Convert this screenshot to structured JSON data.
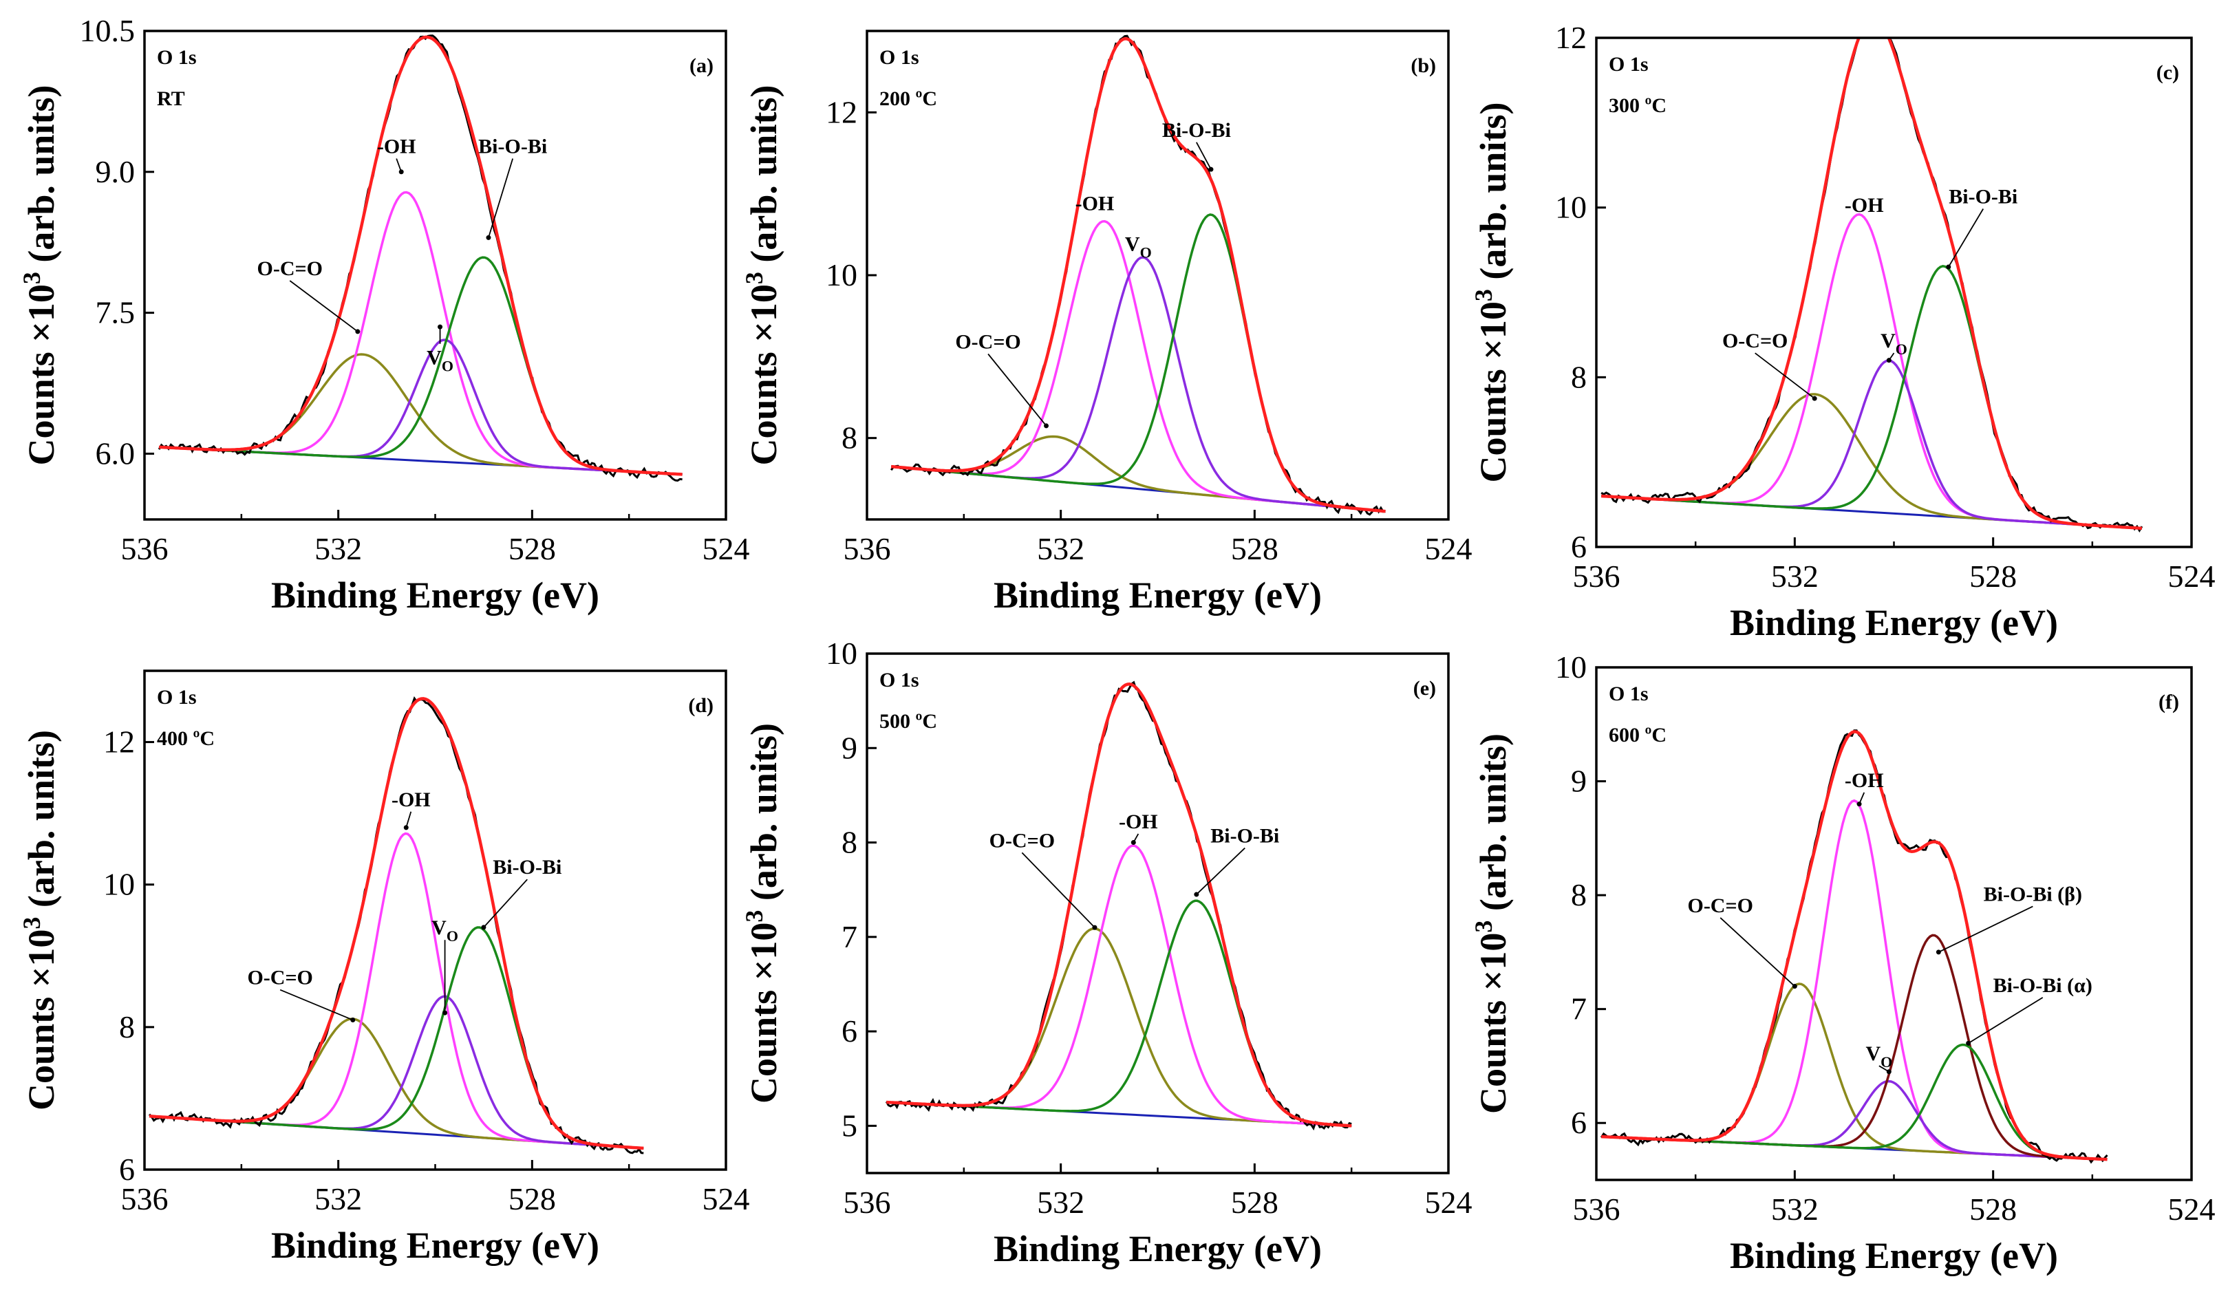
{
  "figure": {
    "xlabel": "Binding Energy (eV)",
    "ylabel_main": "Counts ×10",
    "ylabel_exp": "3",
    "ylabel_unit": " (arb. units)",
    "region_label": "O 1s"
  },
  "colors": {
    "raw": "#000000",
    "envelope": "#ff2020",
    "background": "#1a22b4",
    "oh": "#ff40ff",
    "oco": "#8b8a1c",
    "vo": "#8a2be2",
    "bioibi": "#1a8a1a",
    "bioibi_beta": "#7a1010"
  },
  "chart_data": [
    {
      "type": "line",
      "panel": "(a)",
      "condition": "RT",
      "xlim": [
        536,
        524
      ],
      "ylim": [
        5.3,
        10.5
      ],
      "xticks": [
        536,
        532,
        528,
        524
      ],
      "yticks": [
        "6.0",
        "7.5",
        "9.0",
        "10.5"
      ],
      "x_range": [
        535.7,
        524.9
      ],
      "baseline": [
        6.07,
        5.78
      ],
      "series": [
        {
          "name": "O-C=O",
          "label": "O-C=O",
          "center": 531.5,
          "height": 1.1,
          "width": 0.9
        },
        {
          "name": "-OH",
          "label": "-OH",
          "center": 530.6,
          "height": 2.85,
          "width": 0.75
        },
        {
          "name": "VO",
          "label": "V",
          "label_sub": "O",
          "center": 529.8,
          "height": 1.3,
          "width": 0.6
        },
        {
          "name": "Bi-O-Bi",
          "label": "Bi-O-Bi",
          "center": 529.0,
          "height": 2.2,
          "width": 0.75
        }
      ],
      "annotations": [
        {
          "key": "O-C=O",
          "text": "O-C=O",
          "sub": "",
          "text_at": [
            533.0,
            7.9
          ],
          "arrow_to": [
            531.6,
            7.3
          ]
        },
        {
          "key": "-OH",
          "text": "-OH",
          "sub": "",
          "text_at": [
            530.8,
            9.2
          ],
          "arrow_to": [
            530.7,
            9.0
          ]
        },
        {
          "key": "VO",
          "text": "V",
          "sub": "O",
          "text_at": [
            529.9,
            6.95
          ],
          "arrow_to": [
            529.9,
            7.35
          ]
        },
        {
          "key": "Bi-O-Bi",
          "text": "Bi-O-Bi",
          "sub": "",
          "text_at": [
            528.4,
            9.2
          ],
          "arrow_to": [
            528.9,
            8.3
          ]
        }
      ]
    },
    {
      "type": "line",
      "panel": "(b)",
      "condition": "200 ºC",
      "xlim": [
        536,
        524
      ],
      "ylim": [
        7.0,
        13.0
      ],
      "xticks": [
        536,
        532,
        528,
        524
      ],
      "yticks": [
        "8",
        "10",
        "12"
      ],
      "x_range": [
        535.5,
        525.3
      ],
      "baseline": [
        7.65,
        7.1
      ],
      "series": [
        {
          "name": "O-C=O",
          "label": "O-C=O",
          "center": 532.1,
          "height": 0.55,
          "width": 0.8
        },
        {
          "name": "-OH",
          "label": "-OH",
          "center": 531.1,
          "height": 3.25,
          "width": 0.75
        },
        {
          "name": "VO",
          "label": "V",
          "label_sub": "O",
          "center": 530.3,
          "height": 2.85,
          "width": 0.7
        },
        {
          "name": "Bi-O-Bi",
          "label": "Bi-O-Bi",
          "center": 528.9,
          "height": 3.45,
          "width": 0.72
        }
      ],
      "annotations": [
        {
          "key": "O-C=O",
          "text": "O-C=O",
          "sub": "",
          "text_at": [
            533.5,
            9.1
          ],
          "arrow_to": [
            532.3,
            8.15
          ]
        },
        {
          "key": "-OH",
          "text": "-OH",
          "sub": "",
          "text_at": [
            531.3,
            10.8
          ],
          "arrow_to": [
            531.2,
            10.7
          ]
        },
        {
          "key": "VO",
          "text": "V",
          "sub": "O",
          "text_at": [
            530.4,
            10.3
          ],
          "arrow_to": [
            530.3,
            10.2
          ]
        },
        {
          "key": "Bi-O-Bi",
          "text": "Bi-O-Bi",
          "sub": "",
          "text_at": [
            529.2,
            11.7
          ],
          "arrow_to": [
            528.9,
            11.3
          ]
        }
      ]
    },
    {
      "type": "line",
      "panel": "(c)",
      "condition": "300 ºC",
      "xlim": [
        536,
        524
      ],
      "ylim": [
        6.0,
        12.0
      ],
      "xticks": [
        536,
        532,
        528,
        524
      ],
      "yticks": [
        "6",
        "8",
        "10",
        "12"
      ],
      "x_range": [
        535.9,
        525.0
      ],
      "baseline": [
        6.6,
        6.22
      ],
      "series": [
        {
          "name": "O-C=O",
          "label": "O-C=O",
          "center": 531.6,
          "height": 1.35,
          "width": 0.9
        },
        {
          "name": "-OH",
          "label": "-OH",
          "center": 530.7,
          "height": 3.5,
          "width": 0.75
        },
        {
          "name": "VO",
          "label": "V",
          "label_sub": "O",
          "center": 530.1,
          "height": 1.8,
          "width": 0.6
        },
        {
          "name": "Bi-O-Bi",
          "label": "Bi-O-Bi",
          "center": 529.0,
          "height": 2.95,
          "width": 0.72
        }
      ],
      "annotations": [
        {
          "key": "O-C=O",
          "text": "O-C=O",
          "sub": "",
          "text_at": [
            532.8,
            8.35
          ],
          "arrow_to": [
            531.6,
            7.75
          ]
        },
        {
          "key": "-OH",
          "text": "-OH",
          "sub": "",
          "text_at": [
            530.6,
            9.95
          ],
          "arrow_to": [
            530.7,
            9.9
          ]
        },
        {
          "key": "VO",
          "text": "V",
          "sub": "O",
          "text_at": [
            530.0,
            8.35
          ],
          "arrow_to": [
            530.1,
            8.2
          ]
        },
        {
          "key": "Bi-O-Bi",
          "text": "Bi-O-Bi",
          "sub": "",
          "text_at": [
            528.2,
            10.05
          ],
          "arrow_to": [
            528.9,
            9.3
          ]
        }
      ]
    },
    {
      "type": "line",
      "panel": "(d)",
      "condition": "400 ºC",
      "xlim": [
        536,
        524
      ],
      "ylim": [
        6.0,
        13.0
      ],
      "xticks": [
        536,
        532,
        528,
        524
      ],
      "yticks": [
        "6",
        "8",
        "10",
        "12"
      ],
      "x_range": [
        535.9,
        525.7
      ],
      "baseline": [
        6.75,
        6.3
      ],
      "series": [
        {
          "name": "O-C=O",
          "label": "O-C=O",
          "center": 531.7,
          "height": 1.55,
          "width": 0.75
        },
        {
          "name": "-OH",
          "label": "-OH",
          "center": 530.6,
          "height": 4.2,
          "width": 0.65
        },
        {
          "name": "VO",
          "label": "V",
          "label_sub": "O",
          "center": 529.8,
          "height": 1.95,
          "width": 0.6
        },
        {
          "name": "Bi-O-Bi",
          "label": "Bi-O-Bi",
          "center": 529.1,
          "height": 2.95,
          "width": 0.7
        }
      ],
      "annotations": [
        {
          "key": "O-C=O",
          "text": "O-C=O",
          "sub": "",
          "text_at": [
            533.2,
            8.6
          ],
          "arrow_to": [
            531.7,
            8.1
          ]
        },
        {
          "key": "-OH",
          "text": "-OH",
          "sub": "",
          "text_at": [
            530.5,
            11.1
          ],
          "arrow_to": [
            530.6,
            10.8
          ]
        },
        {
          "key": "VO",
          "text": "V",
          "sub": "O",
          "text_at": [
            529.8,
            9.3
          ],
          "arrow_to": [
            529.8,
            8.2
          ]
        },
        {
          "key": "Bi-O-Bi",
          "text": "Bi-O-Bi",
          "sub": "",
          "text_at": [
            528.1,
            10.15
          ],
          "arrow_to": [
            529.0,
            9.4
          ]
        }
      ]
    },
    {
      "type": "line",
      "panel": "(e)",
      "condition": "500 ºC",
      "xlim": [
        536,
        524
      ],
      "ylim": [
        4.5,
        10.0
      ],
      "xticks": [
        536,
        532,
        528,
        524
      ],
      "yticks": [
        "5",
        "6",
        "7",
        "8",
        "9",
        "10"
      ],
      "x_range": [
        535.6,
        526.0
      ],
      "baseline": [
        5.25,
        5.0
      ],
      "series": [
        {
          "name": "O-C=O",
          "label": "O-C=O",
          "center": 531.3,
          "height": 1.95,
          "width": 0.8
        },
        {
          "name": "-OH",
          "label": "-OH",
          "center": 530.5,
          "height": 2.85,
          "width": 0.75
        },
        {
          "name": "Bi-O-Bi",
          "label": "Bi-O-Bi",
          "center": 529.2,
          "height": 2.3,
          "width": 0.75
        }
      ],
      "annotations": [
        {
          "key": "O-C=O",
          "text": "O-C=O",
          "sub": "",
          "text_at": [
            532.8,
            7.95
          ],
          "arrow_to": [
            531.3,
            7.1
          ]
        },
        {
          "key": "-OH",
          "text": "-OH",
          "sub": "",
          "text_at": [
            530.4,
            8.15
          ],
          "arrow_to": [
            530.5,
            8.0
          ]
        },
        {
          "key": "Bi-O-Bi",
          "text": "Bi-O-Bi",
          "sub": "",
          "text_at": [
            528.2,
            8.0
          ],
          "arrow_to": [
            529.2,
            7.45
          ]
        }
      ]
    },
    {
      "type": "line",
      "panel": "(f)",
      "condition": "600 ºC",
      "xlim": [
        536,
        524
      ],
      "ylim": [
        5.5,
        10.0
      ],
      "xticks": [
        536,
        532,
        528,
        524
      ],
      "yticks": [
        "6",
        "7",
        "8",
        "9",
        "10"
      ],
      "x_range": [
        535.9,
        525.7
      ],
      "baseline": [
        5.88,
        5.68
      ],
      "series": [
        {
          "name": "O-C=O",
          "label": "O-C=O",
          "center": 531.9,
          "height": 1.42,
          "width": 0.62
        },
        {
          "name": "-OH",
          "label": "-OH",
          "center": 530.8,
          "height": 3.05,
          "width": 0.62
        },
        {
          "name": "VO",
          "label": "V",
          "label_sub": "O",
          "center": 530.1,
          "height": 0.6,
          "width": 0.52
        },
        {
          "name": "Bi-O-Bi (β)",
          "label": "Bi-O-Bi (β)",
          "center": 529.2,
          "height": 1.9,
          "width": 0.62
        },
        {
          "name": "Bi-O-Bi (α)",
          "label": "Bi-O-Bi (α)",
          "center": 528.6,
          "height": 0.95,
          "width": 0.6
        }
      ],
      "annotations": [
        {
          "key": "O-C=O",
          "text": "O-C=O",
          "sub": "",
          "text_at": [
            533.5,
            7.85
          ],
          "arrow_to": [
            532.0,
            7.2
          ]
        },
        {
          "key": "-OH",
          "text": "-OH",
          "sub": "",
          "text_at": [
            530.6,
            8.95
          ],
          "arrow_to": [
            530.7,
            8.8
          ]
        },
        {
          "key": "VO",
          "text": "V",
          "sub": "O",
          "text_at": [
            530.3,
            6.55
          ],
          "arrow_to": [
            530.1,
            6.45
          ]
        },
        {
          "key": "Bi-O-Bi (β)",
          "text": "Bi-O-Bi (β)",
          "sub": "",
          "text_at": [
            527.2,
            7.95
          ],
          "arrow_to": [
            529.1,
            7.5
          ]
        },
        {
          "key": "Bi-O-Bi (α)",
          "text": "Bi-O-Bi (α)",
          "sub": "",
          "text_at": [
            527.0,
            7.15
          ],
          "arrow_to": [
            528.5,
            6.7
          ]
        }
      ]
    }
  ]
}
